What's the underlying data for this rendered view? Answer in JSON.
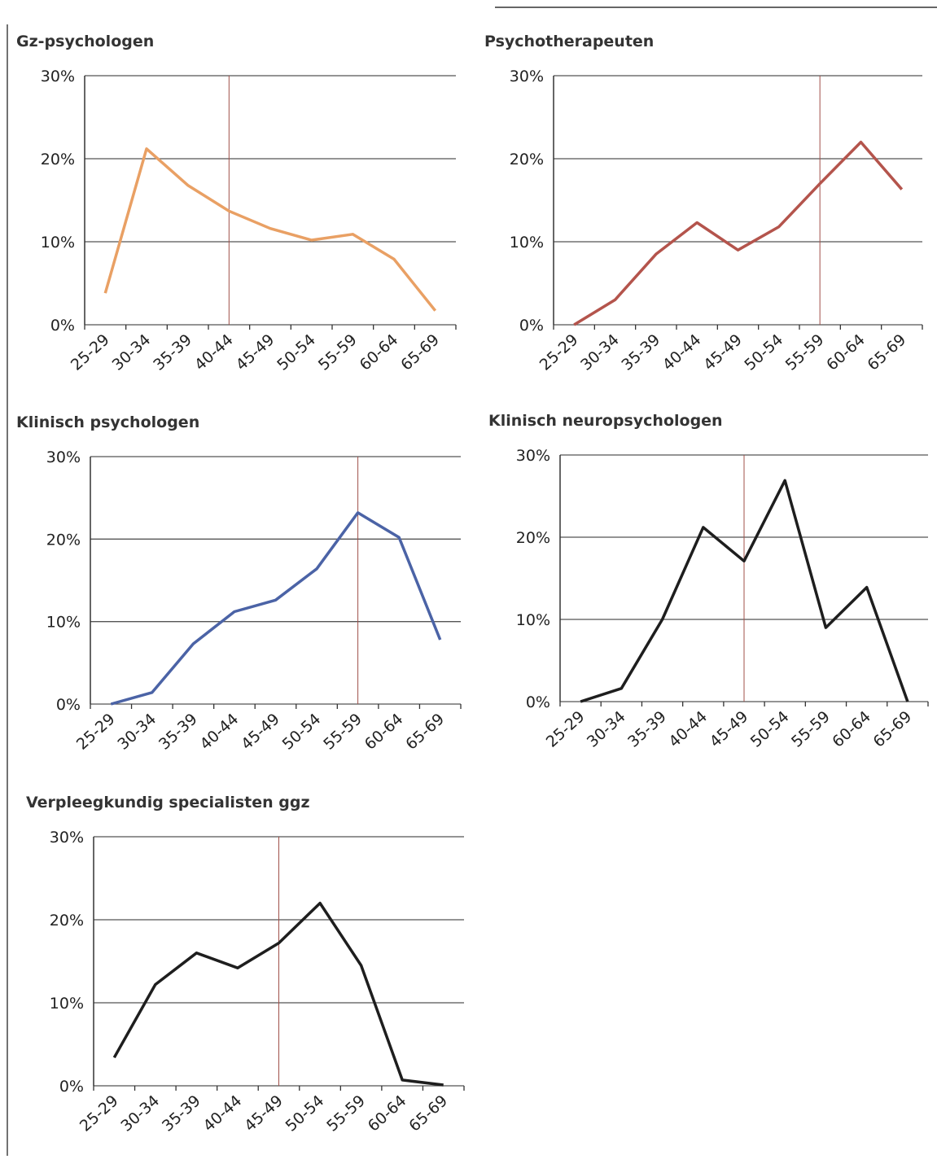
{
  "chart_data": [
    {
      "type": "line",
      "title": "Gz-psychologen",
      "categories": [
        "25-29",
        "30-34",
        "35-39",
        "40-44",
        "45-49",
        "50-54",
        "55-59",
        "60-64",
        "65-69"
      ],
      "values": [
        3.8,
        21.2,
        16.8,
        13.7,
        11.6,
        10.2,
        10.9,
        7.9,
        1.7
      ],
      "color": "#e9a064",
      "ylim": [
        0,
        30
      ],
      "yticks": [
        {
          "value": 0,
          "label": "0%"
        },
        {
          "value": 10,
          "label": "10%"
        },
        {
          "value": 20,
          "label": "20%"
        },
        {
          "value": 30,
          "label": "30%"
        }
      ],
      "grid": true,
      "vline_category": "40-44"
    },
    {
      "type": "line",
      "title": "Psychotherapeuten",
      "categories": [
        "25-29",
        "30-34",
        "35-39",
        "40-44",
        "45-49",
        "50-54",
        "55-59",
        "60-64",
        "65-69"
      ],
      "values": [
        0,
        3,
        8.5,
        12.3,
        9,
        11.8,
        17,
        22,
        16.3
      ],
      "color": "#b4544c",
      "ylim": [
        0,
        30
      ],
      "yticks": [
        {
          "value": 0,
          "label": "0%"
        },
        {
          "value": 10,
          "label": "10%"
        },
        {
          "value": 20,
          "label": "20%"
        },
        {
          "value": 30,
          "label": "30%"
        }
      ],
      "grid": true,
      "vline_category": "55-59"
    },
    {
      "type": "line",
      "title": "Klinisch psychologen",
      "categories": [
        "25-29",
        "30-34",
        "35-39",
        "40-44",
        "45-49",
        "50-54",
        "55-59",
        "60-64",
        "65-69"
      ],
      "values": [
        0,
        1.4,
        7.3,
        11.2,
        12.6,
        16.4,
        23.2,
        20.2,
        7.8
      ],
      "color": "#4b63a6",
      "ylim": [
        0,
        30
      ],
      "yticks": [
        {
          "value": 0,
          "label": "0%"
        },
        {
          "value": 10,
          "label": "10%"
        },
        {
          "value": 20,
          "label": "20%"
        },
        {
          "value": 30,
          "label": "30%"
        }
      ],
      "grid": true,
      "vline_category": "55-59"
    },
    {
      "type": "line",
      "title": "Klinisch neuropsychologen",
      "categories": [
        "25-29",
        "30-34",
        "35-39",
        "40-44",
        "45-49",
        "50-54",
        "55-59",
        "60-64",
        "65-69"
      ],
      "values": [
        0,
        1.6,
        10,
        21.2,
        17.1,
        26.9,
        9,
        13.9,
        0
      ],
      "color": "#1e1e1e",
      "ylim": [
        0,
        30
      ],
      "yticks": [
        {
          "value": 0,
          "label": "0%"
        },
        {
          "value": 10,
          "label": "10%"
        },
        {
          "value": 20,
          "label": "20%"
        },
        {
          "value": 30,
          "label": "30%"
        }
      ],
      "grid": true,
      "vline_category": "45-49"
    },
    {
      "type": "line",
      "title": "Verpleegkundig specialisten ggz",
      "categories": [
        "25-29",
        "30-34",
        "35-39",
        "40-44",
        "45-49",
        "50-54",
        "55-59",
        "60-64",
        "65-69"
      ],
      "values": [
        3.4,
        12.2,
        16,
        14.2,
        17.2,
        22,
        14.5,
        0.7,
        0.1
      ],
      "color": "#1e1e1e",
      "ylim": [
        0,
        30
      ],
      "yticks": [
        {
          "value": 0,
          "label": "0%"
        },
        {
          "value": 10,
          "label": "10%"
        },
        {
          "value": 20,
          "label": "20%"
        },
        {
          "value": 30,
          "label": "30%"
        }
      ],
      "grid": true,
      "vline_category": "45-49"
    }
  ]
}
